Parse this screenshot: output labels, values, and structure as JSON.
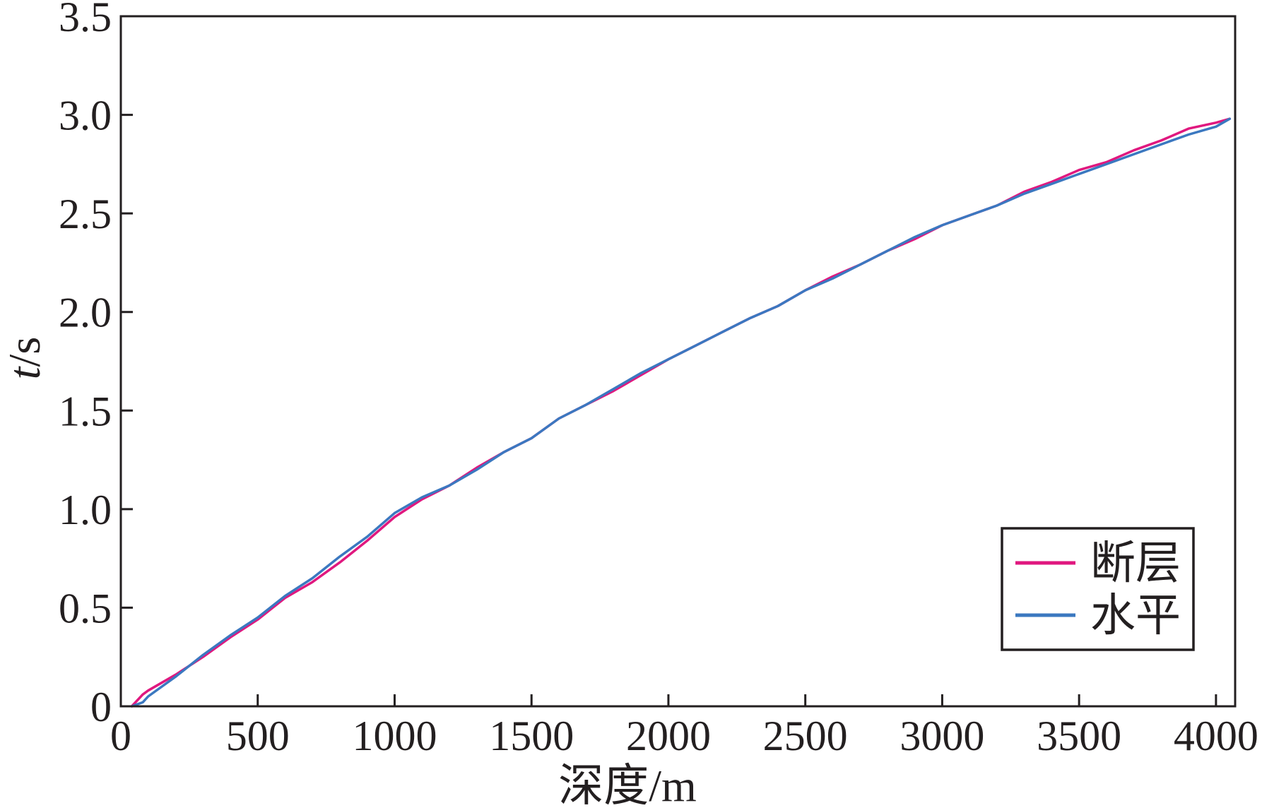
{
  "chart_data": {
    "type": "line",
    "xlabel": "深度/m",
    "ylabel": "t/s",
    "xlim": [
      0,
      4070
    ],
    "ylim": [
      0,
      3.5
    ],
    "xticks": [
      0,
      500,
      1000,
      1500,
      2000,
      2500,
      3000,
      3500,
      4000
    ],
    "xtick_labels": [
      "0",
      "500",
      "1000",
      "1500",
      "2000",
      "2500",
      "3000",
      "3500",
      "4000"
    ],
    "yticks": [
      0,
      0.5,
      1.0,
      1.5,
      2.0,
      2.5,
      3.0,
      3.5
    ],
    "ytick_labels": [
      "0",
      "0.5",
      "1.0",
      "1.5",
      "2.0",
      "2.5",
      "3.0",
      "3.5"
    ],
    "grid": false,
    "legend_position": "lower-right",
    "x": [
      40,
      80,
      100,
      200,
      300,
      400,
      500,
      600,
      700,
      800,
      900,
      1000,
      1100,
      1200,
      1300,
      1400,
      1500,
      1600,
      1700,
      1800,
      1900,
      2000,
      2100,
      2200,
      2300,
      2400,
      2500,
      2600,
      2700,
      2800,
      2900,
      3000,
      3100,
      3200,
      3300,
      3400,
      3500,
      3600,
      3700,
      3800,
      3900,
      4000,
      4050
    ],
    "series": [
      {
        "name": "断层",
        "color": "#e0187f",
        "values": [
          0,
          0.06,
          0.08,
          0.16,
          0.25,
          0.35,
          0.44,
          0.55,
          0.63,
          0.73,
          0.84,
          0.96,
          1.05,
          1.12,
          1.21,
          1.29,
          1.36,
          1.46,
          1.53,
          1.6,
          1.68,
          1.76,
          1.83,
          1.9,
          1.97,
          2.03,
          2.11,
          2.18,
          2.24,
          2.31,
          2.37,
          2.44,
          2.49,
          2.54,
          2.61,
          2.66,
          2.72,
          2.76,
          2.82,
          2.87,
          2.93,
          2.96,
          2.98
        ]
      },
      {
        "name": "水平",
        "color": "#3b78c0",
        "values": [
          0,
          0.02,
          0.05,
          0.15,
          0.26,
          0.36,
          0.45,
          0.56,
          0.65,
          0.76,
          0.86,
          0.98,
          1.06,
          1.12,
          1.2,
          1.29,
          1.36,
          1.46,
          1.53,
          1.61,
          1.69,
          1.76,
          1.83,
          1.9,
          1.97,
          2.03,
          2.11,
          2.17,
          2.24,
          2.31,
          2.38,
          2.44,
          2.49,
          2.54,
          2.6,
          2.65,
          2.7,
          2.75,
          2.8,
          2.85,
          2.9,
          2.94,
          2.98
        ]
      }
    ]
  }
}
